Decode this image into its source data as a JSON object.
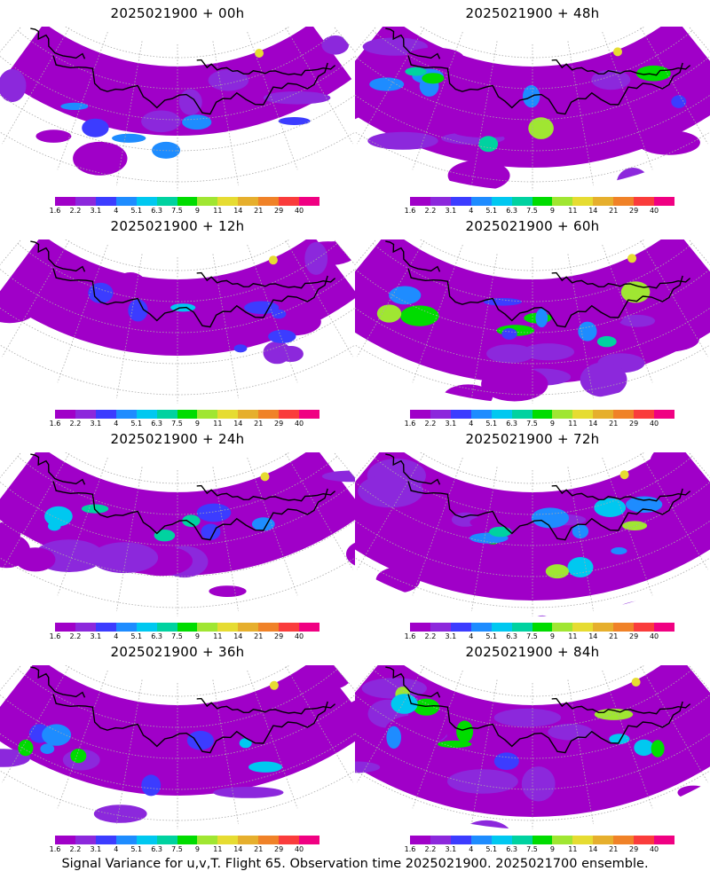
{
  "panels": [
    {
      "title": "2025021900 + 00h",
      "spread": 0.35
    },
    {
      "title": "2025021900 + 48h",
      "spread": 0.8
    },
    {
      "title": "2025021900 + 12h",
      "spread": 0.45
    },
    {
      "title": "2025021900 + 60h",
      "spread": 0.85
    },
    {
      "title": "2025021900 + 24h",
      "spread": 0.55
    },
    {
      "title": "2025021900 + 72h",
      "spread": 0.9
    },
    {
      "title": "2025021900 + 36h",
      "spread": 0.65
    },
    {
      "title": "2025021900 + 84h",
      "spread": 0.95
    }
  ],
  "legend": {
    "labels": [
      "1.6",
      "2.2",
      "3.1",
      "4",
      "5.1",
      "6.3",
      "7.5",
      "9",
      "11",
      "14",
      "21",
      "29",
      "40"
    ],
    "colors": [
      "#a000c8",
      "#8c28dc",
      "#3c3cff",
      "#1e8cff",
      "#00c8f0",
      "#00d2a0",
      "#00dc00",
      "#a0e632",
      "#e6dc32",
      "#e6af2d",
      "#f08228",
      "#fa3c3c",
      "#f00082"
    ]
  },
  "colors": {
    "land_fill": "#a000c8",
    "grid_line": "#aaaaaa",
    "coast_line": "#000000"
  },
  "caption": "Signal Variance for u,v,T. Flight 65. Observation time 2025021900. 2025021700 ensemble."
}
